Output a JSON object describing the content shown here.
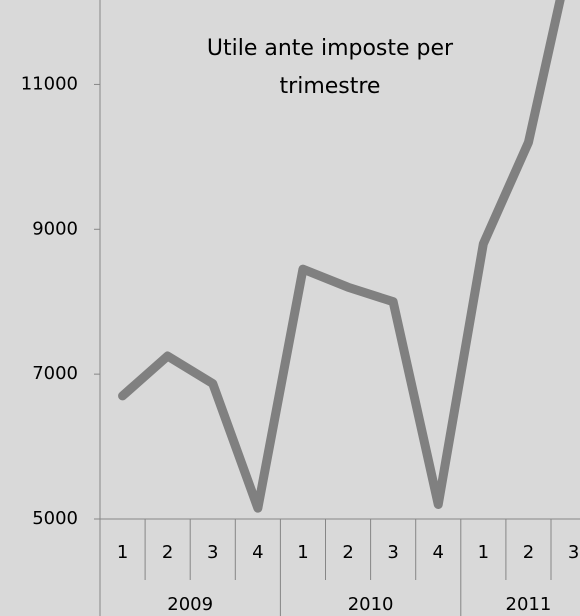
{
  "chart_data": {
    "type": "line",
    "title": "Utile ante imposte per trimestre",
    "groups": [
      {
        "name": "2009",
        "categories": [
          "1",
          "2",
          "3",
          "4"
        ]
      },
      {
        "name": "2010",
        "categories": [
          "1",
          "2",
          "3",
          "4"
        ]
      },
      {
        "name": "2011",
        "categories": [
          "1",
          "2",
          "3"
        ]
      }
    ],
    "series": [
      {
        "color": "#808080",
        "values": [
          6700,
          7250,
          6870,
          5150,
          8450,
          8200,
          8000,
          5200,
          8800,
          10200,
          13000
        ]
      }
    ],
    "ylim": [
      5000,
      12000
    ],
    "yticks": [
      5000,
      7000,
      9000,
      11000
    ],
    "grid": false
  }
}
